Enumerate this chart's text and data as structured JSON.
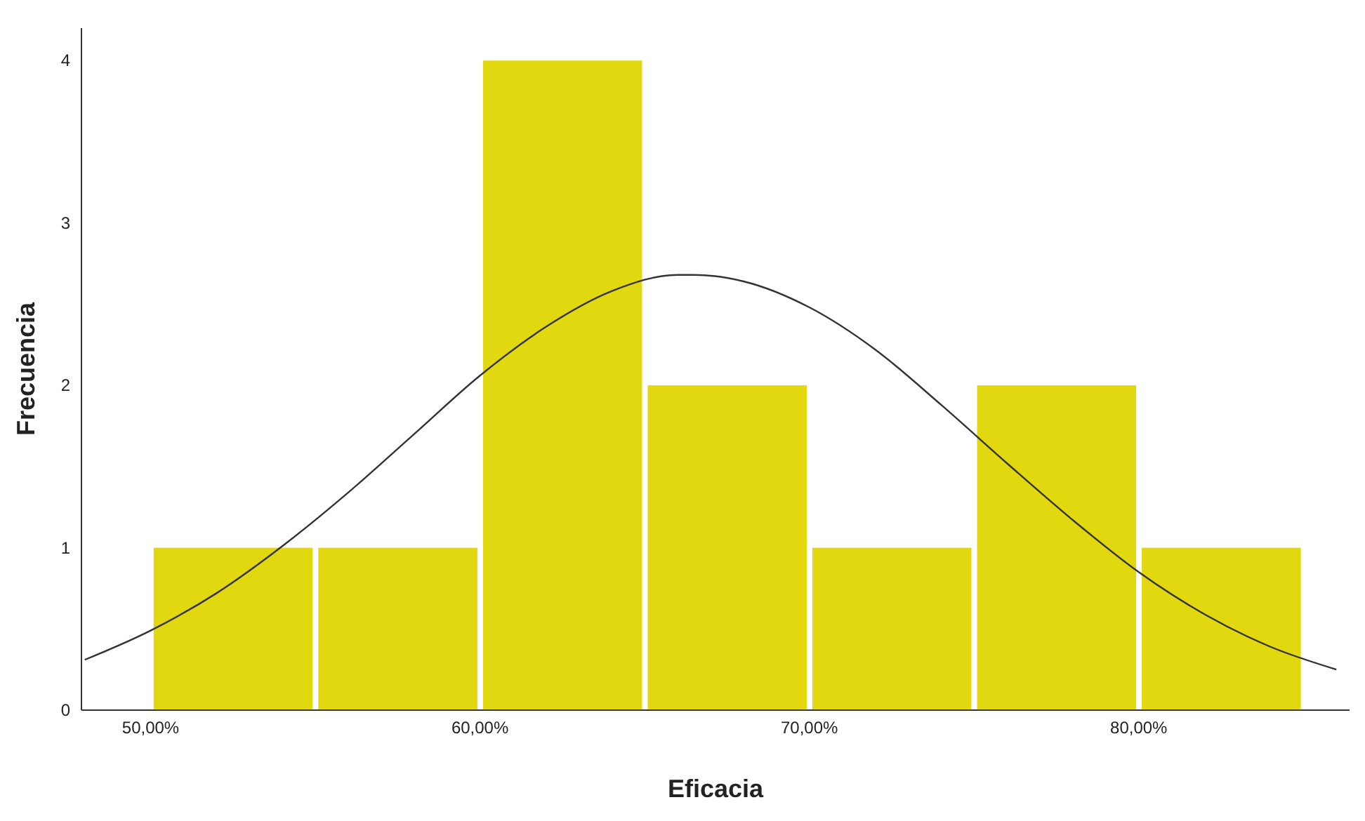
{
  "chart_data": {
    "type": "histogram",
    "xlabel": "Eficacia",
    "ylabel": "Frecuencia",
    "bins": [
      50,
      55,
      60,
      65,
      70,
      75,
      80,
      85
    ],
    "values": [
      1,
      1,
      4,
      2,
      1,
      2,
      1
    ],
    "color": "#e2d810",
    "xlim": [
      47.9,
      86.4
    ],
    "xticks": [
      {
        "value": 50,
        "label": "50,00%"
      },
      {
        "value": 60,
        "label": "60,00%"
      },
      {
        "value": 70,
        "label": "70,00%"
      },
      {
        "value": 80,
        "label": "80,00%"
      }
    ],
    "ylim": [
      0,
      4.2
    ],
    "yticks": [
      0,
      1,
      2,
      3,
      4
    ],
    "grid": false,
    "legend": false,
    "series": [
      {
        "type": "line",
        "color": "#333333",
        "marker": "none",
        "x": [
          48,
          50,
          52,
          54,
          56,
          58,
          60,
          62,
          64,
          66,
          66.5,
          68,
          70,
          72,
          74,
          76,
          78,
          80,
          82,
          84,
          86
        ],
        "values": [
          0.31,
          0.49,
          0.72,
          1.01,
          1.34,
          1.7,
          2.06,
          2.36,
          2.58,
          2.68,
          2.68,
          2.64,
          2.48,
          2.22,
          1.88,
          1.52,
          1.17,
          0.85,
          0.59,
          0.39,
          0.25
        ]
      }
    ]
  }
}
